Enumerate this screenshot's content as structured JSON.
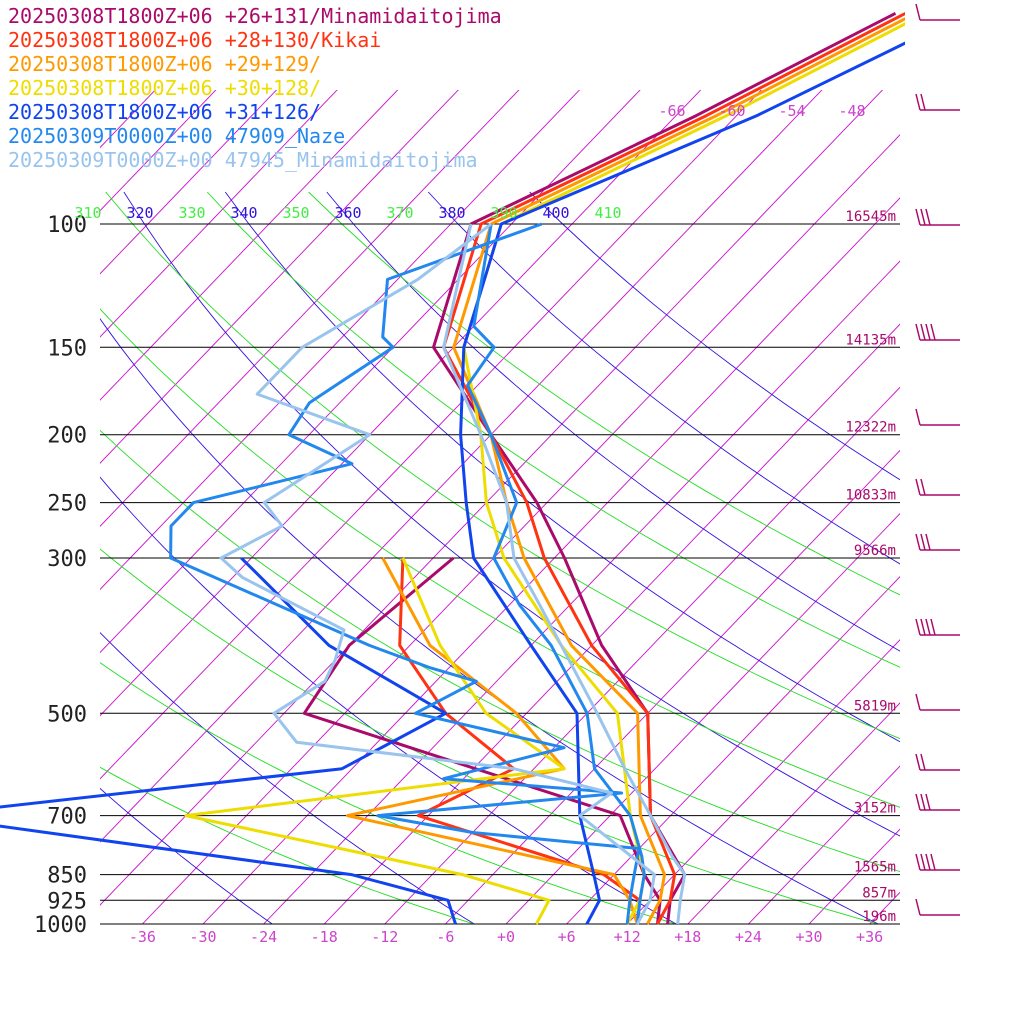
{
  "chart_data": {
    "type": "line",
    "title": "",
    "xlabel": "",
    "ylabel": "",
    "pressure_levels": [
      {
        "p": 100,
        "label": "100",
        "height": "16545m"
      },
      {
        "p": 150,
        "label": "150",
        "height": "14135m"
      },
      {
        "p": 200,
        "label": "200",
        "height": "12322m"
      },
      {
        "p": 250,
        "label": "250",
        "height": "10833m"
      },
      {
        "p": 300,
        "label": "300",
        "height": "9566m"
      },
      {
        "p": 500,
        "label": "500",
        "height": "5819m"
      },
      {
        "p": 700,
        "label": "700",
        "height": "3152m"
      },
      {
        "p": 850,
        "label": "850",
        "height": "1565m"
      },
      {
        "p": 925,
        "label": "925",
        "height": "857m"
      },
      {
        "p": 1000,
        "label": "1000",
        "height": "196m"
      }
    ],
    "temperature_ticks": [
      "-36",
      "-30",
      "-24",
      "-18",
      "-12",
      "-6",
      "+0",
      "+6",
      "+12",
      "+18",
      "+24",
      "+30",
      "+36"
    ],
    "isotherm_labels_top": [
      "-66",
      "-60",
      "-54",
      "-48"
    ],
    "theta_labels": [
      "310",
      "320",
      "330",
      "340",
      "350",
      "360",
      "370",
      "380",
      "390",
      "400",
      "410"
    ],
    "series": [
      {
        "name": "20250308T1800Z+06 +26+131/Minamidaitojima",
        "color": "#aa0a6a",
        "temp": [
          [
            1000,
            16
          ],
          [
            925,
            14
          ],
          [
            850,
            13
          ],
          [
            700,
            4
          ],
          [
            500,
            -6
          ],
          [
            400,
            -17
          ],
          [
            300,
            -29
          ],
          [
            250,
            -37
          ],
          [
            200,
            -48
          ],
          [
            150,
            -62
          ],
          [
            100,
            -70
          ],
          [
            70,
            -58
          ],
          [
            50,
            -48
          ]
        ],
        "dew": [
          [
            1000,
            15
          ],
          [
            925,
            13
          ],
          [
            850,
            9
          ],
          [
            700,
            1
          ],
          [
            500,
            -40
          ],
          [
            400,
            -42
          ],
          [
            300,
            -40
          ]
        ]
      },
      {
        "name": "20250308T1800Z+06 +28+130/Kikai",
        "color": "#ff3311",
        "temp": [
          [
            1000,
            15
          ],
          [
            925,
            14
          ],
          [
            850,
            12
          ],
          [
            700,
            4
          ],
          [
            500,
            -6
          ],
          [
            400,
            -18
          ],
          [
            300,
            -31
          ],
          [
            250,
            -38
          ],
          [
            200,
            -48
          ],
          [
            150,
            -61
          ],
          [
            100,
            -69
          ],
          [
            70,
            -57
          ],
          [
            50,
            -47
          ]
        ],
        "dew": [
          [
            1000,
            13
          ],
          [
            925,
            11
          ],
          [
            850,
            5
          ],
          [
            700,
            -19
          ],
          [
            600,
            -14
          ],
          [
            500,
            -26
          ],
          [
            400,
            -37
          ],
          [
            300,
            -45
          ]
        ]
      },
      {
        "name": "20250308T1800Z+06 +29+129/",
        "color": "#ff9900",
        "temp": [
          [
            1000,
            14
          ],
          [
            925,
            13
          ],
          [
            850,
            11
          ],
          [
            700,
            3
          ],
          [
            500,
            -7
          ],
          [
            400,
            -20
          ],
          [
            300,
            -33
          ],
          [
            250,
            -40
          ],
          [
            200,
            -48
          ],
          [
            150,
            -60
          ],
          [
            100,
            -68
          ],
          [
            70,
            -56
          ],
          [
            50,
            -46
          ]
        ],
        "dew": [
          [
            1000,
            13
          ],
          [
            925,
            10
          ],
          [
            850,
            6
          ],
          [
            700,
            -26
          ],
          [
            600,
            -9
          ],
          [
            500,
            -19
          ],
          [
            400,
            -34
          ],
          [
            300,
            -47
          ]
        ]
      },
      {
        "name": "20250308T1800Z+06 +30+128/",
        "color": "#eedd00",
        "temp": [
          [
            1000,
            12
          ],
          [
            925,
            11
          ],
          [
            850,
            9
          ],
          [
            700,
            2
          ],
          [
            500,
            -9
          ],
          [
            400,
            -21
          ],
          [
            300,
            -35
          ],
          [
            250,
            -42
          ],
          [
            200,
            -49
          ],
          [
            150,
            -59
          ],
          [
            100,
            -67
          ],
          [
            70,
            -55
          ],
          [
            50,
            -45
          ]
        ],
        "dew": [
          [
            1000,
            3
          ],
          [
            925,
            2
          ],
          [
            850,
            -9
          ],
          [
            700,
            -42
          ],
          [
            600,
            -9
          ],
          [
            500,
            -22
          ],
          [
            400,
            -33
          ],
          [
            300,
            -45
          ]
        ]
      },
      {
        "name": "20250308T1800Z+06 +31+126/",
        "color": "#1144ee",
        "temp": [
          [
            1000,
            8
          ],
          [
            925,
            7
          ],
          [
            850,
            4
          ],
          [
            700,
            -3
          ],
          [
            500,
            -13
          ],
          [
            400,
            -24
          ],
          [
            300,
            -38
          ],
          [
            250,
            -44
          ],
          [
            200,
            -51
          ],
          [
            150,
            -59
          ],
          [
            100,
            -67
          ],
          [
            70,
            -52
          ],
          [
            50,
            -41
          ]
        ],
        "dew": [
          [
            1000,
            -5
          ],
          [
            925,
            -8
          ],
          [
            850,
            -20
          ],
          [
            700,
            -68
          ],
          [
            600,
            -31
          ],
          [
            500,
            -26
          ],
          [
            400,
            -44
          ],
          [
            300,
            -61
          ]
        ]
      },
      {
        "name": "20250309T0000Z+00 47909_Naze",
        "color": "#2288ee",
        "temp": [
          [
            1000,
            13
          ],
          [
            925,
            11
          ],
          [
            850,
            9
          ],
          [
            800,
            7
          ],
          [
            700,
            2
          ],
          [
            600,
            -6
          ],
          [
            500,
            -12
          ],
          [
            400,
            -22
          ],
          [
            350,
            -29
          ],
          [
            300,
            -36
          ],
          [
            250,
            -39
          ],
          [
            200,
            -48
          ],
          [
            170,
            -55
          ],
          [
            150,
            -56
          ],
          [
            140,
            -60
          ],
          [
            100,
            -68
          ]
        ],
        "dew": [
          [
            1000,
            12
          ],
          [
            925,
            10
          ],
          [
            850,
            8
          ],
          [
            780,
            6
          ],
          [
            760,
            -3
          ],
          [
            740,
            -12
          ],
          [
            700,
            -23
          ],
          [
            650,
            -1
          ],
          [
            620,
            -20
          ],
          [
            560,
            -11
          ],
          [
            500,
            -29
          ],
          [
            450,
            -26
          ],
          [
            430,
            -32
          ],
          [
            400,
            -40
          ],
          [
            300,
            -68
          ],
          [
            270,
            -71
          ],
          [
            250,
            -71
          ],
          [
            220,
            -59
          ],
          [
            200,
            -68
          ],
          [
            180,
            -69
          ],
          [
            150,
            -66
          ],
          [
            145,
            -68
          ],
          [
            120,
            -73
          ],
          [
            100,
            -63
          ]
        ]
      },
      {
        "name": "20250309T0000Z+00 47945_Minamidaitojima",
        "color": "#99c4ee",
        "temp": [
          [
            1000,
            17
          ],
          [
            925,
            15
          ],
          [
            850,
            13
          ],
          [
            800,
            10
          ],
          [
            700,
            4
          ],
          [
            600,
            -3
          ],
          [
            500,
            -11
          ],
          [
            400,
            -21
          ],
          [
            350,
            -27
          ],
          [
            300,
            -34
          ],
          [
            250,
            -40
          ],
          [
            200,
            -49
          ],
          [
            150,
            -61
          ],
          [
            100,
            -70
          ]
        ],
        "dew": [
          [
            1000,
            13
          ],
          [
            925,
            12
          ],
          [
            850,
            10
          ],
          [
            700,
            -3
          ],
          [
            650,
            -2
          ],
          [
            600,
            -14
          ],
          [
            550,
            -38
          ],
          [
            500,
            -43
          ],
          [
            450,
            -41
          ],
          [
            420,
            -42
          ],
          [
            380,
            -44
          ],
          [
            320,
            -59
          ],
          [
            300,
            -63
          ],
          [
            270,
            -60
          ],
          [
            250,
            -64
          ],
          [
            200,
            -60
          ],
          [
            175,
            -75
          ],
          [
            150,
            -75
          ],
          [
            120,
            -70
          ],
          [
            100,
            -68
          ]
        ]
      }
    ],
    "height_labels_color": "#aa0a6a",
    "colors": {
      "isotherm": "#cc11cc",
      "theta": "#3311dd",
      "theta_e": "#22dd22",
      "isobar": "#000000",
      "tick_label": "#cc44cc"
    },
    "grid": true,
    "legend": "top-left"
  }
}
